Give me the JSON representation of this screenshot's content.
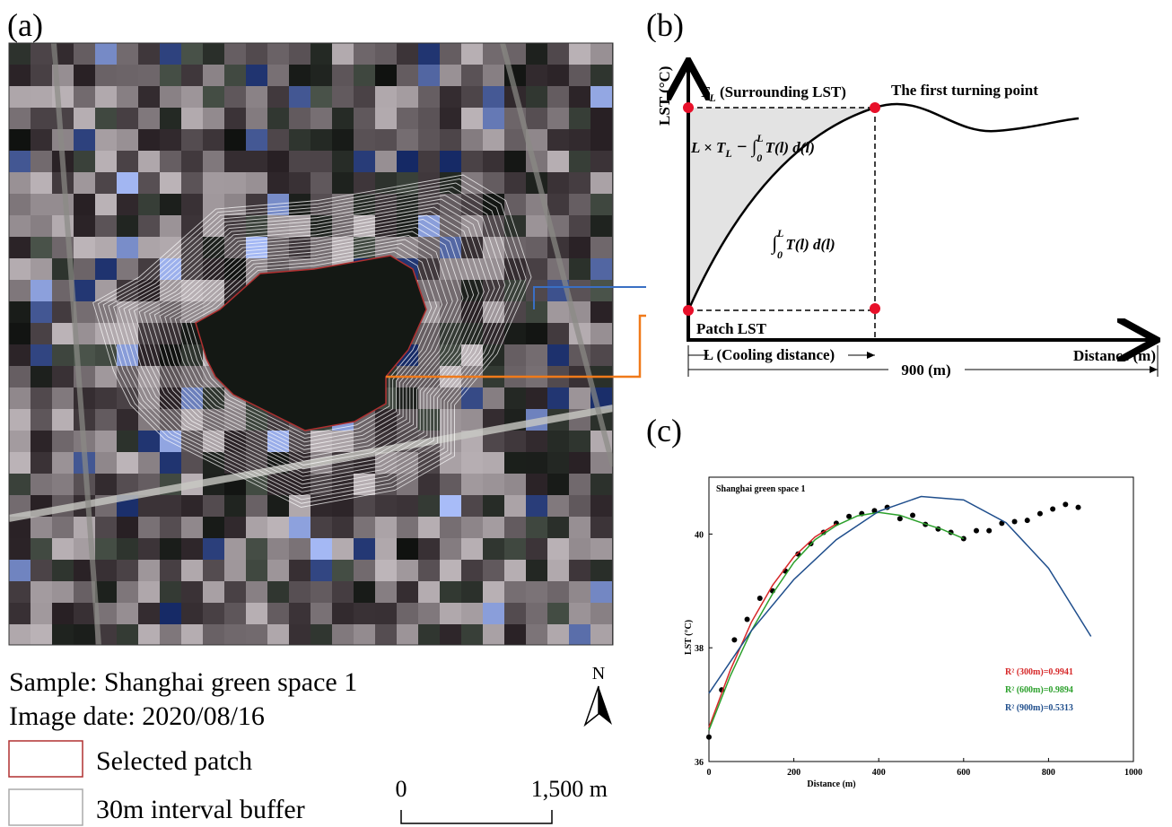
{
  "panel_a": {
    "label": "(a)",
    "sample": "Sample: Shanghai green space 1",
    "image_date": "Image date: 2020/08/16",
    "legend": [
      "Selected patch",
      "30m interval buffer"
    ],
    "north": "N",
    "scale": [
      "0",
      "1,500 m"
    ]
  },
  "panel_b": {
    "label": "(b)",
    "y_axis": "LST (°C)",
    "surrounding": [
      "T",
      "L",
      " (Surrounding LST)"
    ],
    "turning_point": "The first turning point",
    "area_formula": [
      "L × T",
      "L",
      " − ∫",
      "0",
      "L",
      "T(l) d(l)"
    ],
    "integral_formula": [
      "∫",
      "0",
      "L",
      "T(l) d(l)"
    ],
    "patch": "Patch LST",
    "cooling_distance": "L (Cooling distance)",
    "total": "900 (m)",
    "x_axis": "Distance (m)"
  },
  "panel_c": {
    "label": "(c)"
  },
  "chart_data": {
    "type": "scatter",
    "title": "Shanghai green space 1",
    "xlabel": "Distance (m)",
    "ylabel": "LST (°C)",
    "xlim": [
      0,
      1000
    ],
    "xticks": [
      0,
      200,
      400,
      600,
      800,
      1000
    ],
    "ylim": [
      36,
      41
    ],
    "yticks": [
      36,
      38,
      40
    ],
    "series": [
      {
        "mode": "markers",
        "color": "#000000",
        "x": [
          0,
          30,
          60,
          90,
          120,
          150,
          180,
          210,
          240,
          270,
          300,
          330,
          360,
          390,
          420,
          450,
          480,
          510,
          540,
          570,
          600,
          630,
          660,
          690,
          720,
          750,
          780,
          810,
          840,
          870
        ],
        "values": [
          36.43,
          37.26,
          38.14,
          38.5,
          38.87,
          39.0,
          39.35,
          39.65,
          39.83,
          40.03,
          40.19,
          40.31,
          40.36,
          40.41,
          40.47,
          40.27,
          40.33,
          40.17,
          40.09,
          40.03,
          39.92,
          40.06,
          40.06,
          40.19,
          40.22,
          40.24,
          40.36,
          40.44,
          40.52,
          40.47
        ]
      },
      {
        "mode": "lines",
        "name": "R² (300m)=0.9941",
        "color": "#d62728",
        "x": [
          0,
          50,
          100,
          150,
          200,
          250,
          300
        ],
        "values": [
          36.6,
          37.6,
          38.45,
          39.1,
          39.6,
          39.95,
          40.18
        ]
      },
      {
        "mode": "lines",
        "name": "R² (600m)=0.9894",
        "color": "#2ca02c",
        "x": [
          0,
          50,
          100,
          150,
          200,
          250,
          300,
          350,
          400,
          450,
          500,
          550,
          600
        ],
        "values": [
          36.55,
          37.5,
          38.3,
          38.95,
          39.5,
          39.9,
          40.15,
          40.32,
          40.38,
          40.33,
          40.2,
          40.08,
          39.92
        ]
      },
      {
        "mode": "lines",
        "name": "R² (900m)=0.5313",
        "color": "#1f4e8c",
        "x": [
          0,
          100,
          200,
          300,
          400,
          500,
          600,
          700,
          800,
          900
        ],
        "values": [
          37.2,
          38.3,
          39.2,
          39.9,
          40.4,
          40.66,
          40.6,
          40.2,
          39.4,
          38.2
        ]
      }
    ]
  }
}
